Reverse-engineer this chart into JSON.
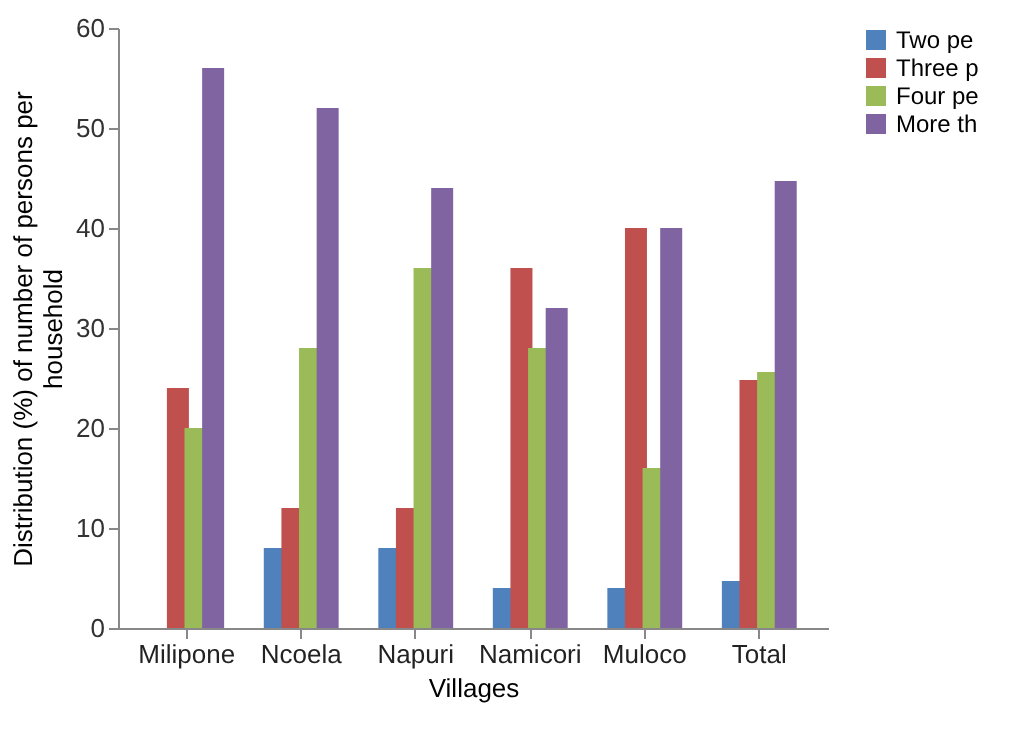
{
  "chart_data": {
    "type": "bar",
    "xlabel": "Villages",
    "ylabel": "Distribution (%) of number of persons per household",
    "categories": [
      "Milipone",
      "Ncoela",
      "Napuri",
      "Namicori",
      "Muloco",
      "Total"
    ],
    "series": [
      {
        "name": "Two pe",
        "color": "#4f81bd",
        "values": [
          0,
          8,
          8,
          4,
          4,
          4.7
        ]
      },
      {
        "name": "Three p",
        "color": "#c0504d",
        "values": [
          24,
          12,
          12,
          36,
          40,
          24.8
        ]
      },
      {
        "name": "Four pe",
        "color": "#9bbb59",
        "values": [
          20,
          28,
          36,
          28,
          16,
          25.6
        ]
      },
      {
        "name": "More th",
        "color": "#8064a2",
        "values": [
          56,
          52,
          44,
          32,
          40,
          44.7
        ]
      }
    ],
    "ylim": [
      0,
      60
    ],
    "yticks": [
      0,
      10,
      20,
      30,
      40,
      50,
      60
    ],
    "grid": false,
    "legend": "right"
  }
}
